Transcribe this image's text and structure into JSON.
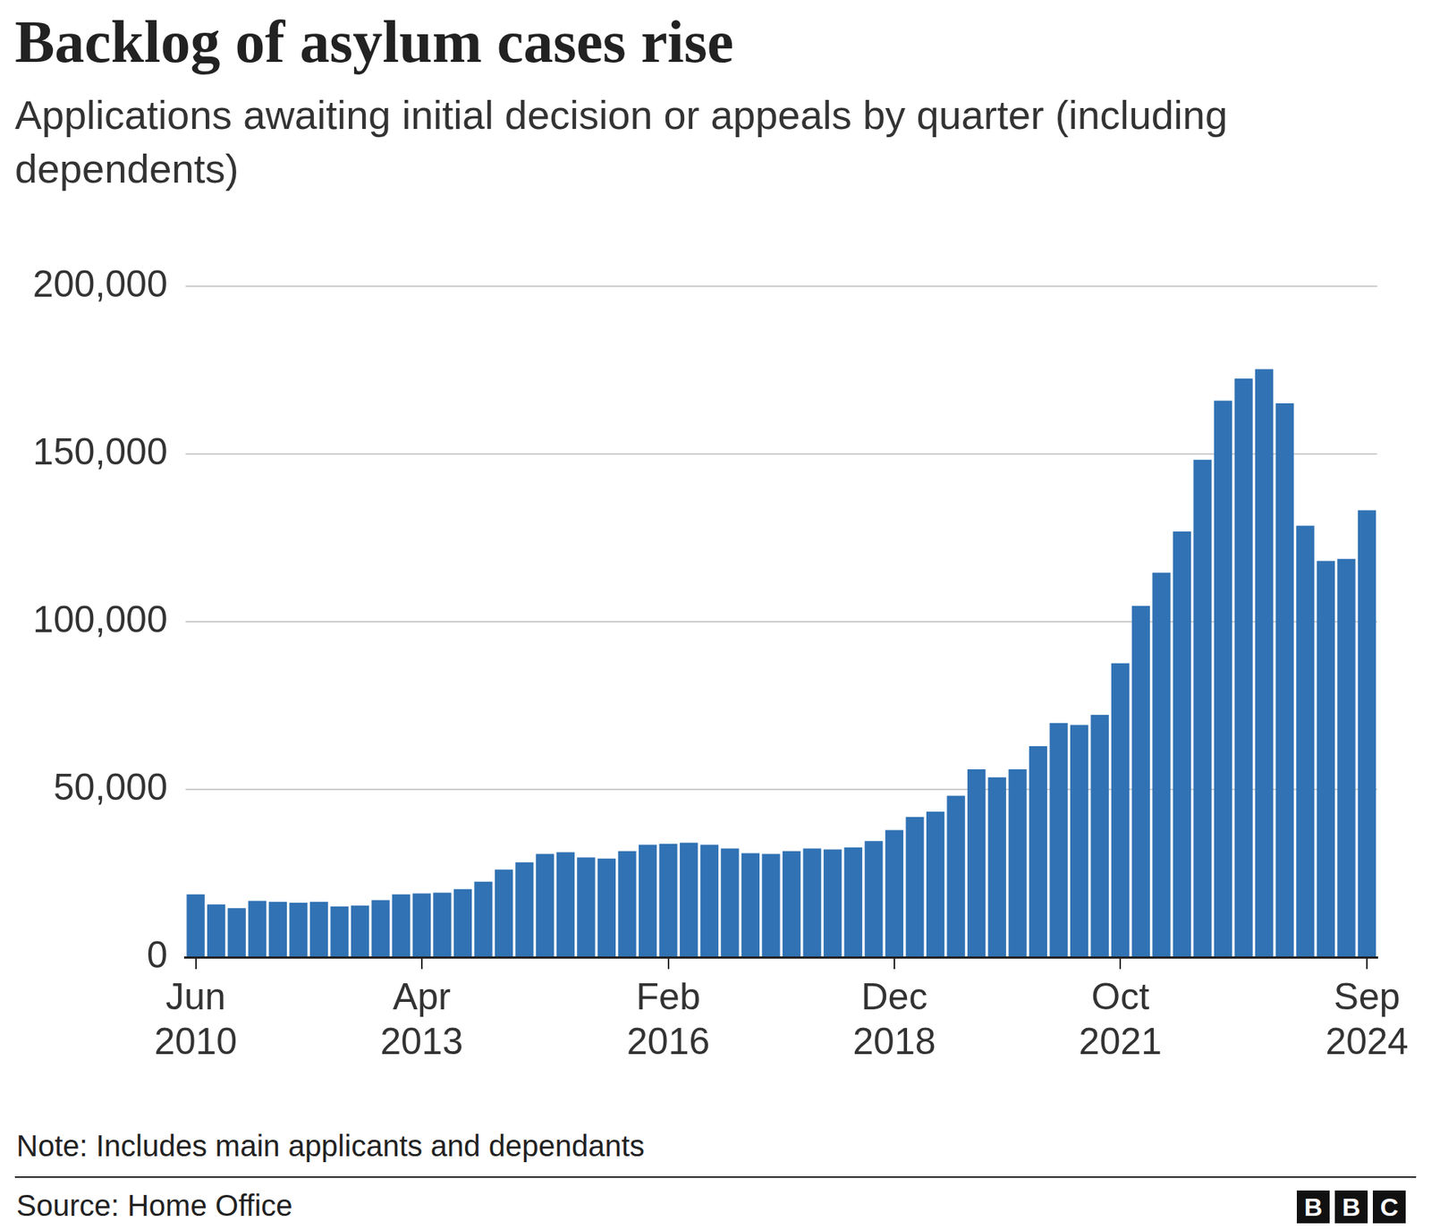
{
  "chart_data": {
    "type": "bar",
    "title": "Backlog of asylum cases rise",
    "subtitle": "Applications awaiting initial decision or appeals by quarter (including dependents)",
    "note": "Note: Includes main applicants and dependants",
    "source": "Source: Home Office",
    "branding": "BBC",
    "categories": [
      "Jun 2010",
      null,
      null,
      null,
      null,
      null,
      null,
      null,
      null,
      null,
      null,
      "Apr 2013",
      null,
      null,
      null,
      null,
      null,
      null,
      null,
      null,
      null,
      null,
      null,
      "Feb 2016",
      null,
      null,
      null,
      null,
      null,
      null,
      null,
      null,
      null,
      null,
      "Dec 2018",
      null,
      null,
      null,
      null,
      null,
      null,
      null,
      null,
      null,
      null,
      "Oct 2021",
      null,
      null,
      null,
      null,
      null,
      null,
      null,
      null,
      null,
      null,
      null,
      "Sep 2024"
    ],
    "values": [
      18700,
      15700,
      14600,
      16800,
      16500,
      16200,
      16500,
      15100,
      15400,
      17000,
      18700,
      19000,
      19200,
      20300,
      22500,
      26100,
      28300,
      30800,
      31300,
      29700,
      29400,
      31600,
      33500,
      33800,
      34100,
      33500,
      32400,
      31000,
      30800,
      31600,
      32400,
      32100,
      32700,
      34600,
      37900,
      41800,
      43400,
      48100,
      56000,
      53600,
      56000,
      62900,
      69800,
      69200,
      72200,
      87600,
      104700,
      114600,
      126900,
      148300,
      165900,
      172500,
      175300,
      165100,
      128600,
      118100,
      118700,
      133200
    ],
    "color": "#3072b4",
    "ylim": [
      0,
      200000
    ],
    "yticks": [
      0,
      {
        "value": 50000,
        "label": "50,000"
      },
      {
        "value": 100000,
        "label": "100,000"
      },
      {
        "value": 150000,
        "label": "150,000"
      },
      {
        "value": 200000,
        "label": "200,000"
      }
    ],
    "grid": true
  }
}
